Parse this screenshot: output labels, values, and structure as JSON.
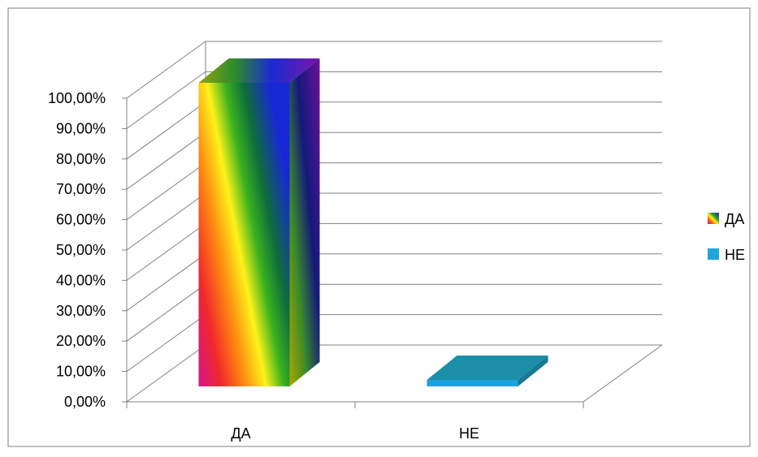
{
  "chart_data": {
    "type": "bar",
    "categories": [
      "ДА",
      "НЕ"
    ],
    "values": [
      1.0,
      0.02
    ],
    "ylim": [
      0,
      1
    ],
    "yticks": [
      0,
      0.1,
      0.2,
      0.3,
      0.4,
      0.5,
      0.6,
      0.7,
      0.8,
      0.9,
      1.0
    ],
    "ytick_labels": [
      "0,00%",
      "10,00%",
      "20,00%",
      "30,00%",
      "40,00%",
      "50,00%",
      "60,00%",
      "70,00%",
      "80,00%",
      "90,00%",
      "100,00%"
    ],
    "legend": [
      {
        "label": "ДА",
        "style": "rainbow"
      },
      {
        "label": "НЕ",
        "color": "#1fa6dc"
      }
    ],
    "legend_position": "right",
    "grid": true,
    "three_d": true
  },
  "colors": {
    "gridline": "#808080",
    "frame_border": "#7f7f7f",
    "ne_front": "#1aa3dd",
    "ne_top": "#1c8ea8",
    "ne_side": "#177a93"
  }
}
